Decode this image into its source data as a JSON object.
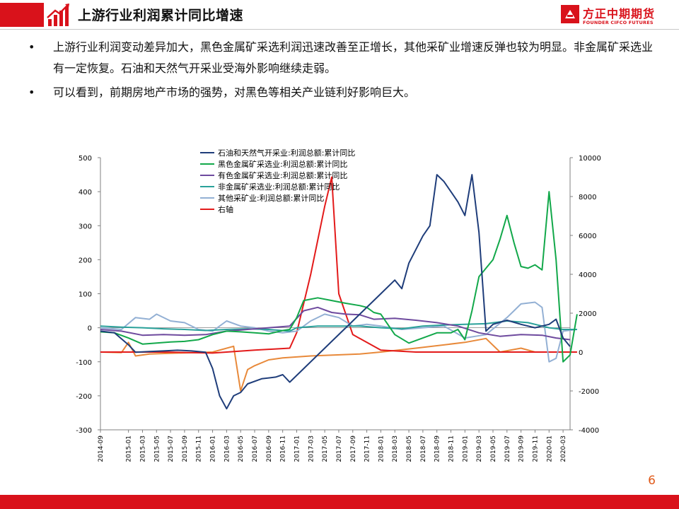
{
  "header": {
    "title": "上游行业利润累计同比增速",
    "logo_cn": "方正中期期货",
    "logo_en": "FOUNDER CIFCO FUTURES",
    "accent": "#d9121b"
  },
  "bullets": [
    "上游行业利润变动差异加大，黑色金属矿采选利润迅速改善至正增长，其他采矿业增速反弹也较为明显。非金属矿采选业有一定恢复。石油和天然气开采业受海外影响继续走弱。",
    "可以看到，前期房地产市场的强势，对黑色等相关产业链利好影响巨大。"
  ],
  "bullet_glyph": "•",
  "page_number": "6",
  "chart_data": {
    "type": "line",
    "title": "",
    "xlabel": "",
    "ylabel": "",
    "y_left_lim": [
      -300,
      500
    ],
    "y_left_ticks": [
      "500",
      "400",
      "300",
      "200",
      "100",
      "0",
      "-100",
      "-200",
      "-300"
    ],
    "y_right_lim": [
      -4000,
      10000
    ],
    "y_right_ticks": [
      "10000",
      "8000",
      "6000",
      "4000",
      "2000",
      "0",
      "-2000",
      "-4000"
    ],
    "x_ticks": [
      "2014-09",
      "2015-01",
      "2015-03",
      "2015-05",
      "2015-07",
      "2015-09",
      "2015-11",
      "2016-01",
      "2016-03",
      "2016-05",
      "2016-07",
      "2016-09",
      "2016-11",
      "2017-01",
      "2017-03",
      "2017-05",
      "2017-07",
      "2017-09",
      "2017-11",
      "2018-01",
      "2018-03",
      "2018-05",
      "2018-07",
      "2018-09",
      "2018-11",
      "2019-01",
      "2019-03",
      "2019-05",
      "2019-07",
      "2019-09",
      "2019-11",
      "2020-01",
      "2020-03"
    ],
    "x_range": [
      "2014-09",
      "2020-04"
    ],
    "grid": false,
    "legend_position": "top-center",
    "series": [
      {
        "name": "石油和天然气开采业:利润总额:累计同比",
        "axis": "left",
        "color": "#1f3d7a",
        "points": [
          [
            "2014-09",
            -10
          ],
          [
            "2014-11",
            -15
          ],
          [
            "2015-01",
            -50
          ],
          [
            "2015-02",
            -72
          ],
          [
            "2015-04",
            -70
          ],
          [
            "2015-06",
            -68
          ],
          [
            "2015-08",
            -66
          ],
          [
            "2015-10",
            -68
          ],
          [
            "2015-12",
            -72
          ],
          [
            "2016-01",
            -120
          ],
          [
            "2016-02",
            -200
          ],
          [
            "2016-03",
            -238
          ],
          [
            "2016-04",
            -200
          ],
          [
            "2016-05",
            -190
          ],
          [
            "2016-06",
            -165
          ],
          [
            "2016-08",
            -150
          ],
          [
            "2016-10",
            -145
          ],
          [
            "2016-11",
            -138
          ],
          [
            "2016-12",
            -160
          ],
          [
            "2017-02",
            -120
          ],
          [
            "2017-04",
            -80
          ],
          [
            "2017-06",
            -40
          ],
          [
            "2017-08",
            0
          ],
          [
            "2017-10",
            40
          ],
          [
            "2017-12",
            80
          ],
          [
            "2018-01",
            100
          ],
          [
            "2018-03",
            140
          ],
          [
            "2018-04",
            115
          ],
          [
            "2018-05",
            190
          ],
          [
            "2018-07",
            270
          ],
          [
            "2018-08",
            300
          ],
          [
            "2018-09",
            450
          ],
          [
            "2018-10",
            430
          ],
          [
            "2018-11",
            400
          ],
          [
            "2018-12",
            370
          ],
          [
            "2019-01",
            330
          ],
          [
            "2019-02",
            450
          ],
          [
            "2019-03",
            280
          ],
          [
            "2019-04",
            -10
          ],
          [
            "2019-05",
            10
          ],
          [
            "2019-07",
            22
          ],
          [
            "2019-09",
            10
          ],
          [
            "2019-11",
            0
          ],
          [
            "2020-01",
            10
          ],
          [
            "2020-02",
            25
          ],
          [
            "2020-03",
            -30
          ],
          [
            "2020-04",
            -55
          ]
        ]
      },
      {
        "name": "黑色金属矿采选业:利润总额:累计同比",
        "axis": "left",
        "color": "#12a84a",
        "points": [
          [
            "2014-09",
            -12
          ],
          [
            "2014-11",
            -15
          ],
          [
            "2015-01",
            -30
          ],
          [
            "2015-03",
            -48
          ],
          [
            "2015-05",
            -45
          ],
          [
            "2015-07",
            -42
          ],
          [
            "2015-09",
            -40
          ],
          [
            "2015-11",
            -35
          ],
          [
            "2016-01",
            -20
          ],
          [
            "2016-03",
            -10
          ],
          [
            "2016-05",
            -12
          ],
          [
            "2016-07",
            -15
          ],
          [
            "2016-09",
            -18
          ],
          [
            "2016-11",
            -8
          ],
          [
            "2016-12",
            -5
          ],
          [
            "2017-01",
            30
          ],
          [
            "2017-02",
            80
          ],
          [
            "2017-04",
            88
          ],
          [
            "2017-06",
            80
          ],
          [
            "2017-08",
            72
          ],
          [
            "2017-10",
            65
          ],
          [
            "2017-11",
            60
          ],
          [
            "2017-12",
            45
          ],
          [
            "2018-01",
            40
          ],
          [
            "2018-03",
            -20
          ],
          [
            "2018-05",
            -45
          ],
          [
            "2018-07",
            -30
          ],
          [
            "2018-09",
            -15
          ],
          [
            "2018-11",
            -15
          ],
          [
            "2018-12",
            -5
          ],
          [
            "2019-01",
            -35
          ],
          [
            "2019-02",
            50
          ],
          [
            "2019-03",
            150
          ],
          [
            "2019-05",
            200
          ],
          [
            "2019-06",
            260
          ],
          [
            "2019-07",
            330
          ],
          [
            "2019-08",
            250
          ],
          [
            "2019-09",
            180
          ],
          [
            "2019-10",
            175
          ],
          [
            "2019-11",
            185
          ],
          [
            "2019-12",
            170
          ],
          [
            "2020-01",
            400
          ],
          [
            "2020-02",
            200
          ],
          [
            "2020-03",
            -100
          ],
          [
            "2020-04",
            -80
          ],
          [
            "2020-05",
            40
          ]
        ]
      },
      {
        "name": "有色金属矿采选业:利润总额:累计同比",
        "axis": "left",
        "color": "#6e4a9e",
        "points": [
          [
            "2014-09",
            -5
          ],
          [
            "2014-12",
            -10
          ],
          [
            "2015-03",
            -22
          ],
          [
            "2015-06",
            -20
          ],
          [
            "2015-09",
            -22
          ],
          [
            "2015-12",
            -20
          ],
          [
            "2016-03",
            -10
          ],
          [
            "2016-06",
            -5
          ],
          [
            "2016-09",
            0
          ],
          [
            "2016-12",
            5
          ],
          [
            "2017-02",
            50
          ],
          [
            "2017-04",
            60
          ],
          [
            "2017-06",
            45
          ],
          [
            "2017-08",
            40
          ],
          [
            "2017-10",
            38
          ],
          [
            "2017-12",
            25
          ],
          [
            "2018-03",
            28
          ],
          [
            "2018-06",
            22
          ],
          [
            "2018-09",
            15
          ],
          [
            "2018-12",
            5
          ],
          [
            "2019-03",
            -15
          ],
          [
            "2019-06",
            -25
          ],
          [
            "2019-09",
            -20
          ],
          [
            "2019-12",
            -22
          ],
          [
            "2020-02",
            -30
          ],
          [
            "2020-04",
            -35
          ]
        ]
      },
      {
        "name": "非金属矿采选业:利润总额:累计同比",
        "axis": "left",
        "color": "#2aa19a",
        "points": [
          [
            "2014-09",
            5
          ],
          [
            "2014-12",
            2
          ],
          [
            "2015-03",
            0
          ],
          [
            "2015-06",
            -3
          ],
          [
            "2015-09",
            -5
          ],
          [
            "2015-12",
            -8
          ],
          [
            "2016-03",
            -5
          ],
          [
            "2016-06",
            -3
          ],
          [
            "2016-09",
            -5
          ],
          [
            "2016-12",
            -10
          ],
          [
            "2017-01",
            0
          ],
          [
            "2017-04",
            5
          ],
          [
            "2017-07",
            5
          ],
          [
            "2017-10",
            5
          ],
          [
            "2018-01",
            0
          ],
          [
            "2018-04",
            -3
          ],
          [
            "2018-07",
            5
          ],
          [
            "2018-10",
            8
          ],
          [
            "2019-01",
            10
          ],
          [
            "2019-04",
            12
          ],
          [
            "2019-07",
            20
          ],
          [
            "2019-10",
            15
          ],
          [
            "2020-01",
            0
          ],
          [
            "2020-03",
            -5
          ],
          [
            "2020-05",
            -5
          ]
        ]
      },
      {
        "name": "其他采矿业:利润总额:累计同比",
        "axis": "left",
        "color": "#93b0d4",
        "points": [
          [
            "2014-09",
            0
          ],
          [
            "2014-12",
            -5
          ],
          [
            "2015-02",
            30
          ],
          [
            "2015-04",
            25
          ],
          [
            "2015-05",
            40
          ],
          [
            "2015-07",
            20
          ],
          [
            "2015-09",
            15
          ],
          [
            "2015-11",
            -5
          ],
          [
            "2016-01",
            -10
          ],
          [
            "2016-03",
            20
          ],
          [
            "2016-05",
            5
          ],
          [
            "2016-07",
            0
          ],
          [
            "2016-09",
            -10
          ],
          [
            "2016-11",
            -15
          ],
          [
            "2017-01",
            -10
          ],
          [
            "2017-03",
            20
          ],
          [
            "2017-05",
            40
          ],
          [
            "2017-07",
            30
          ],
          [
            "2017-09",
            5
          ],
          [
            "2017-11",
            10
          ],
          [
            "2018-01",
            5
          ],
          [
            "2018-04",
            -5
          ],
          [
            "2018-07",
            0
          ],
          [
            "2018-10",
            5
          ],
          [
            "2019-01",
            -30
          ],
          [
            "2019-04",
            -20
          ],
          [
            "2019-07",
            30
          ],
          [
            "2019-08",
            50
          ],
          [
            "2019-09",
            70
          ],
          [
            "2019-11",
            75
          ],
          [
            "2019-12",
            60
          ],
          [
            "2020-01",
            -100
          ],
          [
            "2020-02",
            -90
          ],
          [
            "2020-03",
            -10
          ],
          [
            "2020-05",
            -5
          ]
        ]
      },
      {
        "name": "右轴",
        "axis": "right",
        "color": "#e31a1a",
        "points": [
          [
            "2014-09",
            0
          ],
          [
            "2015-06",
            0
          ],
          [
            "2016-01",
            -50
          ],
          [
            "2016-07",
            100
          ],
          [
            "2016-12",
            200
          ],
          [
            "2017-01",
            1000
          ],
          [
            "2017-03",
            4000
          ],
          [
            "2017-05",
            7500
          ],
          [
            "2017-06",
            9000
          ],
          [
            "2017-07",
            3000
          ],
          [
            "2017-09",
            900
          ],
          [
            "2017-11",
            500
          ],
          [
            "2018-01",
            100
          ],
          [
            "2018-06",
            0
          ],
          [
            "2019-06",
            0
          ],
          [
            "2020-05",
            0
          ]
        ]
      },
      {
        "name": "",
        "axis": "right",
        "color": "#e8893a",
        "points": [
          [
            "2014-09",
            0
          ],
          [
            "2014-12",
            -30
          ],
          [
            "2015-01",
            500
          ],
          [
            "2015-02",
            -200
          ],
          [
            "2015-04",
            -100
          ],
          [
            "2015-08",
            -50
          ],
          [
            "2016-01",
            0
          ],
          [
            "2016-04",
            300
          ],
          [
            "2016-05",
            -2000
          ],
          [
            "2016-06",
            -900
          ],
          [
            "2016-07",
            -700
          ],
          [
            "2016-09",
            -400
          ],
          [
            "2016-11",
            -300
          ],
          [
            "2017-03",
            -200
          ],
          [
            "2017-10",
            -100
          ],
          [
            "2018-01",
            0
          ],
          [
            "2018-06",
            200
          ],
          [
            "2019-01",
            500
          ],
          [
            "2019-04",
            700
          ],
          [
            "2019-06",
            0
          ],
          [
            "2019-09",
            200
          ],
          [
            "2019-11",
            0
          ],
          [
            "2020-05",
            0
          ]
        ]
      }
    ]
  }
}
